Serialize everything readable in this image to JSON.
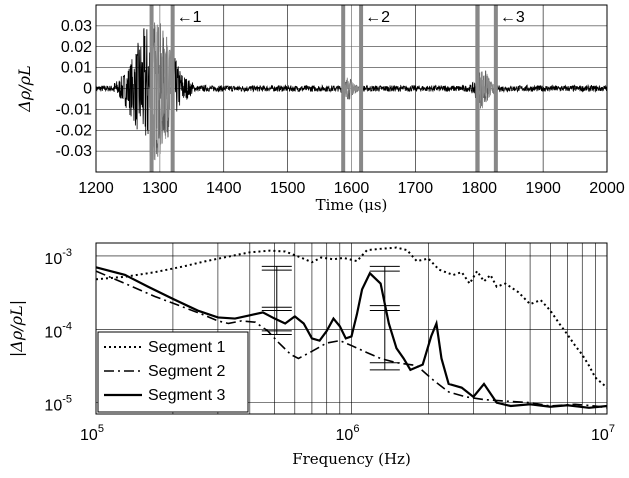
{
  "chart_data": [
    {
      "type": "line",
      "xlabel": "Time (μs)",
      "ylabel": "Δρ/ρL",
      "xlim": [
        1200,
        2000
      ],
      "ylim": [
        -0.04,
        0.04
      ],
      "x_ticks": [
        1200,
        1300,
        1400,
        1500,
        1600,
        1700,
        1800,
        1900,
        2000
      ],
      "x_tick_labels": [
        "1200",
        "1300",
        "1400",
        "1500",
        "1600",
        "1700",
        "1800",
        "1900",
        "2000"
      ],
      "y_ticks": [
        0.03,
        0.02,
        0.01,
        0,
        -0.01,
        -0.02,
        -0.03
      ],
      "y_tick_labels": [
        "0.03",
        "0.02",
        "0.01",
        "0",
        "-0.01",
        "-0.02",
        "-0.03"
      ],
      "grid": true,
      "segments": [
        {
          "label": "←1",
          "x_start": 1287,
          "x_end": 1320
        },
        {
          "label": "←2",
          "x_start": 1587,
          "x_end": 1615
        },
        {
          "label": "←3",
          "x_start": 1797,
          "x_end": 1826
        }
      ],
      "signal": {
        "noise_amplitude": 0.0015,
        "bursts": [
          {
            "center": 1290,
            "half_width": 45,
            "amplitude": 0.033
          },
          {
            "center": 1595,
            "half_width": 10,
            "amplitude": 0.004
          },
          {
            "center": 1805,
            "half_width": 14,
            "amplitude": 0.009
          }
        ]
      }
    },
    {
      "type": "line",
      "xlabel": "Frequency (Hz)",
      "ylabel": "|Δρ/ρL|",
      "x_scale": "log",
      "y_scale": "log",
      "xlim": [
        100000,
        10000000
      ],
      "ylim": [
        7e-06,
        0.0015
      ],
      "x_tick_labels": [
        {
          "value": 100000,
          "base": "10",
          "exp": "5"
        },
        {
          "value": 1000000,
          "base": "10",
          "exp": "6"
        },
        {
          "value": 10000000,
          "base": "10",
          "exp": "7"
        }
      ],
      "y_tick_labels": [
        {
          "value": 0.001,
          "base": "10",
          "exp": "-3"
        },
        {
          "value": 0.0001,
          "base": "10",
          "exp": "-4"
        },
        {
          "value": 1e-05,
          "base": "10",
          "exp": "-5"
        }
      ],
      "grid": true,
      "legend_position": "bottom-left",
      "series": [
        {
          "name": "Segment 1",
          "style": "dotted",
          "points": [
            [
              100000,
              0.00048
            ],
            [
              130000,
              0.00052
            ],
            [
              170000,
              0.0006
            ],
            [
              220000,
              0.00072
            ],
            [
              270000,
              0.00085
            ],
            [
              330000,
              0.00098
            ],
            [
              400000,
              0.00112
            ],
            [
              480000,
              0.00118
            ],
            [
              550000,
              0.00115
            ],
            [
              620000,
              0.00098
            ],
            [
              700000,
              0.00082
            ],
            [
              760000,
              0.00095
            ],
            [
              850000,
              0.0009
            ],
            [
              930000,
              0.00094
            ],
            [
              1050000,
              0.00085
            ],
            [
              1150000,
              0.0012
            ],
            [
              1300000,
              0.00125
            ],
            [
              1500000,
              0.0013
            ],
            [
              1650000,
              0.0012
            ],
            [
              1800000,
              0.00085
            ],
            [
              2000000,
              0.00092
            ],
            [
              2200000,
              0.00065
            ],
            [
              2500000,
              0.00055
            ],
            [
              2700000,
              0.0006
            ],
            [
              2900000,
              0.00042
            ],
            [
              3100000,
              0.00062
            ],
            [
              3300000,
              0.00045
            ],
            [
              3500000,
              0.00055
            ],
            [
              3700000,
              0.00038
            ],
            [
              4000000,
              0.00042
            ],
            [
              4500000,
              0.00032
            ],
            [
              5000000,
              0.00022
            ],
            [
              5500000,
              0.00025
            ],
            [
              6000000,
              0.00018
            ],
            [
              6500000,
              0.00012
            ],
            [
              7000000,
              8.5e-05
            ],
            [
              7500000,
              6e-05
            ],
            [
              8000000,
              4.5e-05
            ],
            [
              8500000,
              3.2e-05
            ],
            [
              9000000,
              2.2e-05
            ],
            [
              10000000,
              1.6e-05
            ]
          ]
        },
        {
          "name": "Segment 2",
          "style": "dashdot",
          "points": [
            [
              100000,
              0.00062
            ],
            [
              130000,
              0.00042
            ],
            [
              170000,
              0.00028
            ],
            [
              220000,
              0.0002
            ],
            [
              260000,
              0.00016
            ],
            [
              300000,
              0.00013
            ],
            [
              330000,
              0.00012
            ],
            [
              370000,
              0.00013
            ],
            [
              420000,
              0.000125
            ],
            [
              470000,
              9.5e-05
            ],
            [
              520000,
              6.5e-05
            ],
            [
              580000,
              4.5e-05
            ],
            [
              620000,
              4e-05
            ],
            [
              700000,
              5e-05
            ],
            [
              800000,
              6.5e-05
            ],
            [
              900000,
              7e-05
            ],
            [
              1000000,
              6e-05
            ],
            [
              1150000,
              4.8e-05
            ],
            [
              1300000,
              4e-05
            ],
            [
              1500000,
              3.5e-05
            ],
            [
              1800000,
              3.2e-05
            ],
            [
              2100000,
              2e-05
            ],
            [
              2400000,
              1.4e-05
            ],
            [
              2800000,
              1.2e-05
            ],
            [
              3300000,
              1.1e-05
            ],
            [
              4000000,
              1.05e-05
            ],
            [
              5000000,
              1e-05
            ],
            [
              6000000,
              9e-06
            ],
            [
              7500000,
              9.5e-06
            ],
            [
              9000000,
              9e-06
            ],
            [
              10000000,
              8.5e-06
            ]
          ]
        },
        {
          "name": "Segment 3",
          "style": "solid",
          "points": [
            [
              100000,
              0.0007
            ],
            [
              130000,
              0.00055
            ],
            [
              160000,
              0.00038
            ],
            [
              200000,
              0.00026
            ],
            [
              250000,
              0.00018
            ],
            [
              300000,
              0.000145
            ],
            [
              350000,
              0.00014
            ],
            [
              400000,
              0.000155
            ],
            [
              450000,
              0.00017
            ],
            [
              500000,
              0.00014
            ],
            [
              550000,
              0.00012
            ],
            [
              600000,
              0.00015
            ],
            [
              650000,
              0.00012
            ],
            [
              700000,
              7.5e-05
            ],
            [
              750000,
              7e-05
            ],
            [
              800000,
              9.5e-05
            ],
            [
              850000,
              0.00014
            ],
            [
              900000,
              0.00011
            ],
            [
              950000,
              7.5e-05
            ],
            [
              1000000,
              8e-05
            ],
            [
              1050000,
              0.00016
            ],
            [
              1100000,
              0.00035
            ],
            [
              1180000,
              0.00058
            ],
            [
              1300000,
              0.00042
            ],
            [
              1400000,
              0.00012
            ],
            [
              1500000,
              5.5e-05
            ],
            [
              1600000,
              4e-05
            ],
            [
              1700000,
              2.8e-05
            ],
            [
              1900000,
              3.3e-05
            ],
            [
              2050000,
              8e-05
            ],
            [
              2150000,
              0.00012
            ],
            [
              2250000,
              4e-05
            ],
            [
              2400000,
              1.8e-05
            ],
            [
              2700000,
              1.6e-05
            ],
            [
              3000000,
              1.2e-05
            ],
            [
              3300000,
              1.8e-05
            ],
            [
              3700000,
              1e-05
            ],
            [
              4200000,
              9e-06
            ],
            [
              5000000,
              9.5e-06
            ],
            [
              6000000,
              8.8e-06
            ],
            [
              7000000,
              9.2e-06
            ],
            [
              8500000,
              8.5e-06
            ],
            [
              10000000,
              9e-06
            ]
          ]
        }
      ],
      "error_bars": [
        {
          "x": 510000,
          "y_low": 8.5e-05,
          "y_high": 0.0001,
          "caps": [
            0.00072,
            0.00064,
            0.0002,
            0.00018,
            9.5e-05,
            8.5e-05
          ]
        },
        {
          "x": 1350000,
          "y_low": 2.7e-05,
          "y_high": 0.00032,
          "caps": [
            0.00072,
            0.00062,
            0.00021,
            0.00018,
            3.5e-05,
            2.8e-05
          ]
        }
      ]
    }
  ]
}
